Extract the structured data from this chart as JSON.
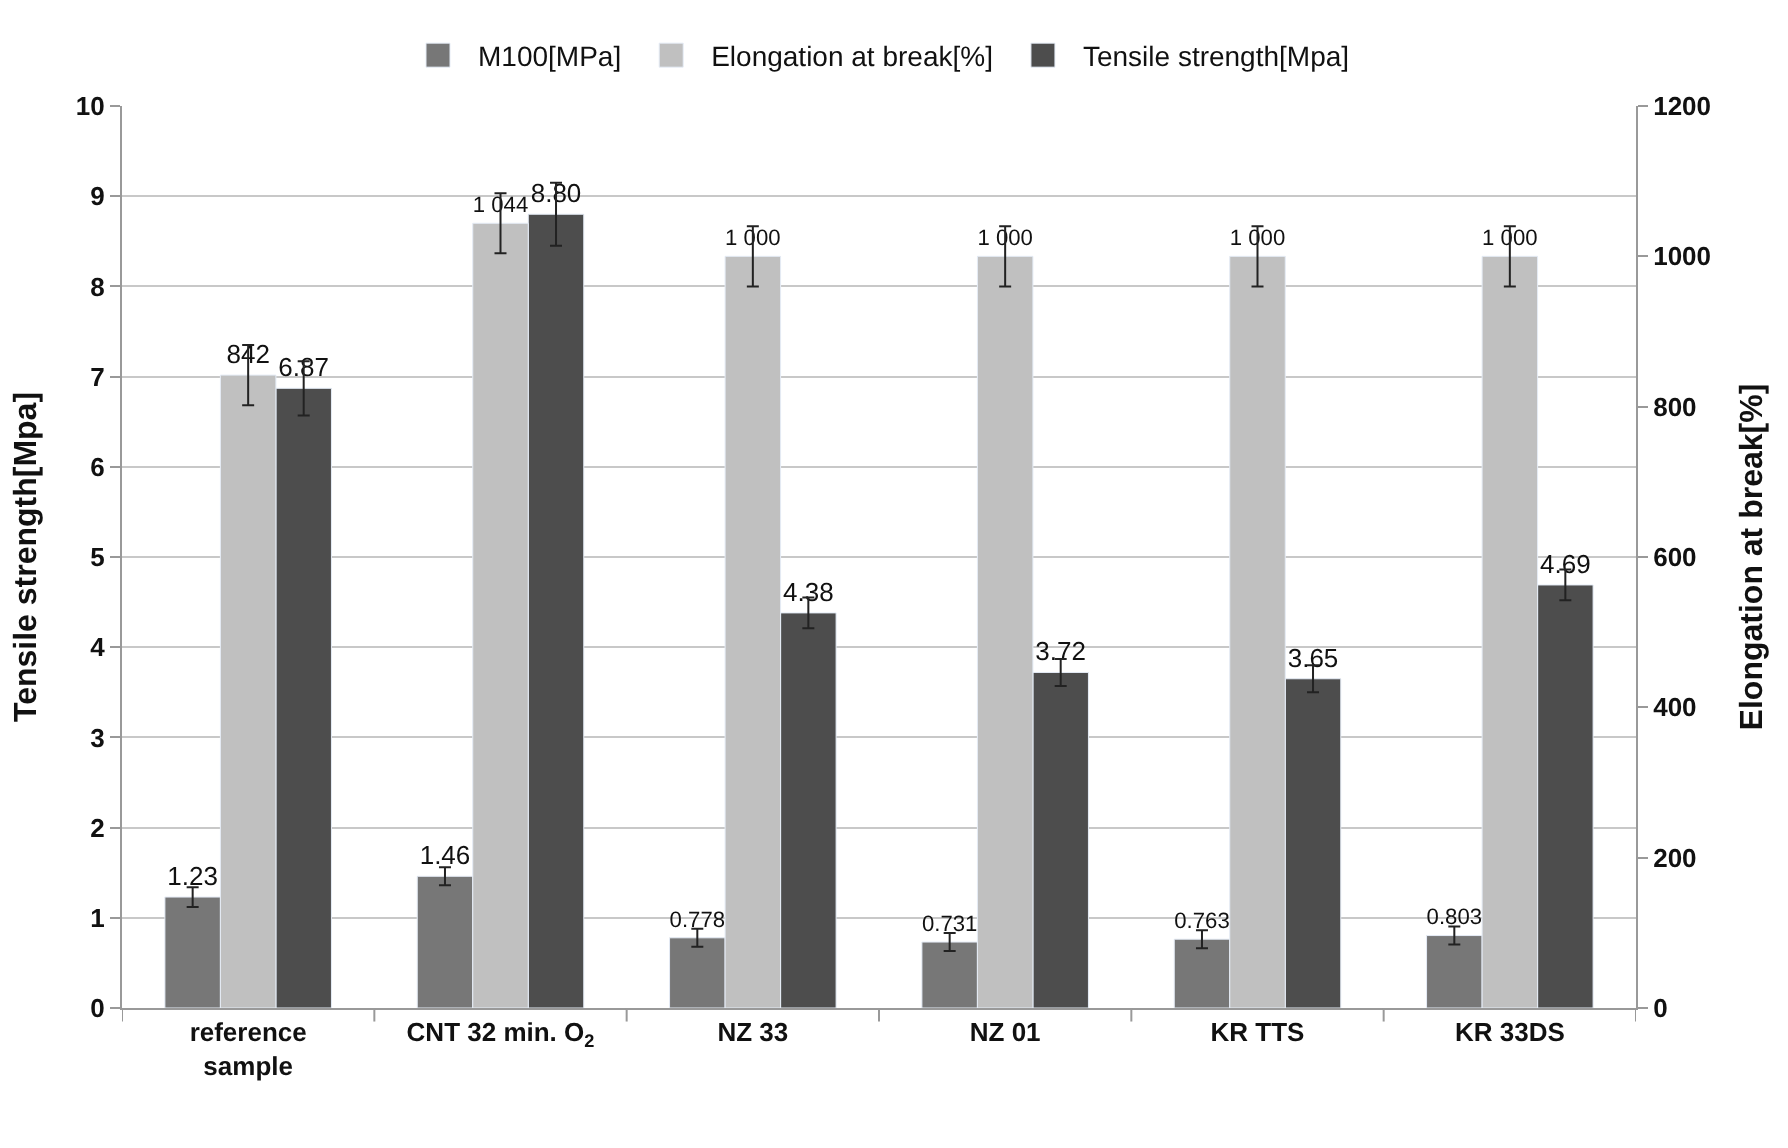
{
  "chart_data": {
    "type": "bar",
    "ylabel": "Tensile strength[Mpa]",
    "y2label": "Elongation at break[%]",
    "categories": [
      "reference\nsample",
      "CNT 32 min. O$_{2}$",
      "NZ 33",
      "NZ 01",
      "KR TTS",
      "KR 33DS"
    ],
    "series": [
      {
        "name": "M100[MPa]",
        "color": "#777777",
        "values": [
          1.23,
          1.46,
          0.778,
          0.731,
          0.763,
          0.803
        ],
        "errors": [
          0.11,
          0.1,
          0.1,
          0.1,
          0.1,
          0.1
        ],
        "value_labels": [
          "1.23",
          "1.46",
          "0.778",
          "0.731",
          "0.763",
          "0.803"
        ]
      },
      {
        "name": "Elongation at break[%]",
        "color": "#c0c0c0",
        "axis": "y2",
        "values": [
          842,
          1044,
          1000,
          1000,
          1000,
          1000
        ],
        "errors": [
          40,
          40,
          40,
          40,
          40,
          40
        ],
        "value_labels": [
          "842",
          "1 044",
          "1 000",
          "1 000",
          "1 000",
          "1 000"
        ]
      },
      {
        "name": "Tensile strength[Mpa]",
        "color": "#4d4d4d",
        "values": [
          6.87,
          8.8,
          4.38,
          3.72,
          3.65,
          4.69
        ],
        "errors": [
          0.3,
          0.35,
          0.17,
          0.15,
          0.15,
          0.17
        ],
        "value_labels": [
          "6.87",
          "8.80",
          "4.38",
          "3.72",
          "3.65",
          "4.69"
        ]
      }
    ],
    "ylim": [
      0,
      10
    ],
    "yticks": [
      0,
      1,
      2,
      3,
      4,
      5,
      6,
      7,
      8,
      9,
      10
    ],
    "y2lim": [
      0,
      1200
    ],
    "y2ticks": [
      0,
      200,
      400,
      600,
      800,
      1000,
      1200
    ],
    "grid": "y",
    "legend": "top"
  }
}
